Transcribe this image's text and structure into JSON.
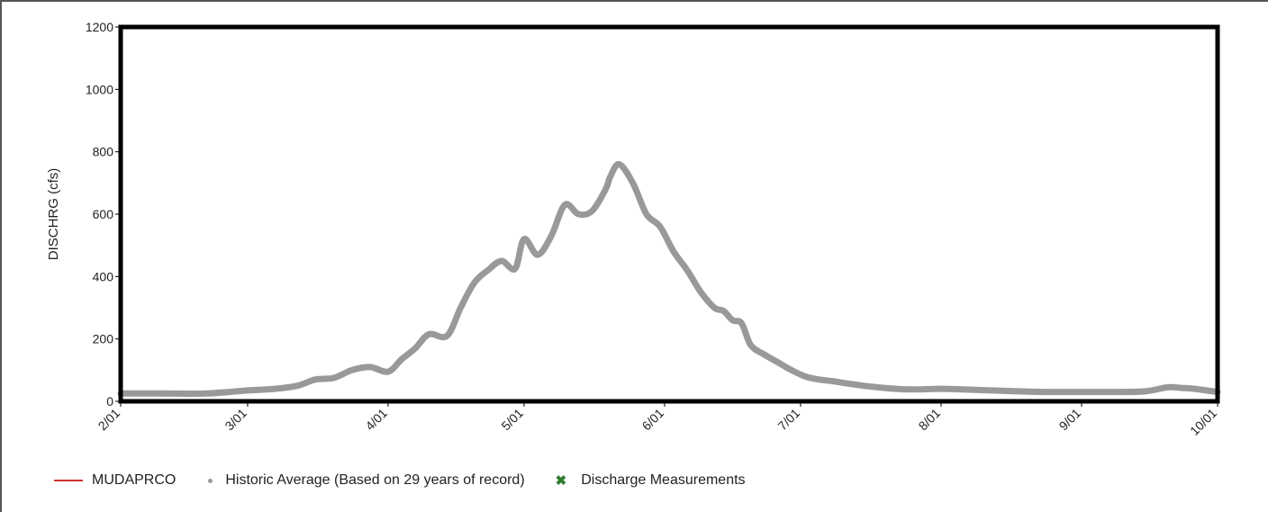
{
  "chart_data": {
    "type": "line",
    "ylabel": "DISCHRG (cfs)",
    "ylim": [
      0,
      1200
    ],
    "yticks": [
      0,
      200,
      400,
      600,
      800,
      1000,
      1200
    ],
    "xlim": [
      "2/01",
      "10/01"
    ],
    "xticks": [
      "2/01",
      "3/01",
      "4/01",
      "5/01",
      "6/01",
      "7/01",
      "8/01",
      "9/01",
      "10/01"
    ],
    "grid": false,
    "legend_position": "bottom-left",
    "legend": [
      {
        "label": "MUDAPRCO",
        "marker": "line",
        "color": "#cc3333"
      },
      {
        "label": "Historic Average (Based on 29 years of record)",
        "marker": "dot",
        "color": "#999999"
      },
      {
        "label": "Discharge Measurements",
        "marker": "x",
        "color": "#2e7d32"
      }
    ],
    "series": [
      {
        "name": "Historic Average (Based on 29 years of record)",
        "color": "#999999",
        "x": [
          "2/01",
          "2/10",
          "2/20",
          "3/01",
          "3/07",
          "3/12",
          "3/16",
          "3/20",
          "3/24",
          "3/28",
          "4/01",
          "4/04",
          "4/07",
          "4/10",
          "4/14",
          "4/17",
          "4/20",
          "4/23",
          "4/26",
          "4/29",
          "5/01",
          "5/04",
          "5/07",
          "5/10",
          "5/13",
          "5/16",
          "5/19",
          "5/20",
          "5/22",
          "5/25",
          "5/28",
          "5/31",
          "6/03",
          "6/06",
          "6/09",
          "6/12",
          "6/14",
          "6/16",
          "6/18",
          "6/20",
          "6/23",
          "6/26",
          "6/29",
          "7/02",
          "7/05",
          "7/08",
          "7/11",
          "7/15",
          "7/20",
          "7/25",
          "8/01",
          "8/06",
          "8/12",
          "8/18",
          "8/24",
          "9/01",
          "9/08",
          "9/15",
          "9/20",
          "9/23",
          "9/26",
          "10/01"
        ],
        "y": [
          25,
          25,
          25,
          35,
          40,
          50,
          70,
          75,
          100,
          110,
          95,
          135,
          170,
          215,
          210,
          300,
          380,
          420,
          450,
          425,
          520,
          470,
          530,
          630,
          600,
          610,
          680,
          720,
          760,
          700,
          600,
          560,
          480,
          420,
          350,
          300,
          290,
          260,
          250,
          180,
          150,
          125,
          100,
          80,
          70,
          65,
          58,
          50,
          42,
          38,
          40,
          38,
          35,
          32,
          30,
          30,
          30,
          32,
          45,
          43,
          40,
          30
        ]
      }
    ]
  }
}
